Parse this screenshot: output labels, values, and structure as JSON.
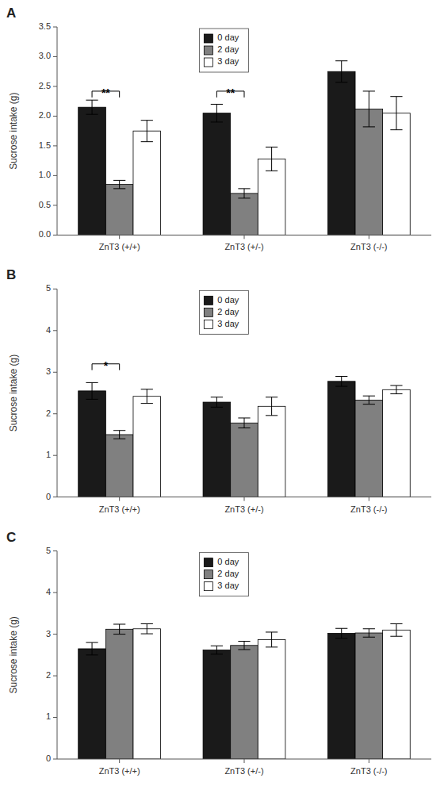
{
  "chart_data": [
    {
      "type": "bar",
      "title": "A",
      "ylabel": "Sucrose intake (g)",
      "categories": [
        "ZnT3 (+/+)",
        "ZnT3 (+/-)",
        "ZnT3 (-/-)"
      ],
      "series": [
        {
          "name": "0 day",
          "color": "#1a1a1a",
          "values": [
            2.15,
            2.05,
            2.75
          ],
          "errors": [
            0.12,
            0.15,
            0.18
          ]
        },
        {
          "name": "2 day",
          "color": "#808080",
          "values": [
            0.85,
            0.7,
            2.12
          ],
          "errors": [
            0.07,
            0.08,
            0.3
          ]
        },
        {
          "name": "3 day",
          "color": "#ffffff",
          "values": [
            1.75,
            1.28,
            2.05
          ],
          "errors": [
            0.18,
            0.2,
            0.28
          ]
        }
      ],
      "ylim": [
        0,
        3.5
      ],
      "yticks": [
        {
          "value": 0,
          "label": "0.0"
        },
        0.5,
        {
          "value": 1,
          "label": "1.0"
        },
        1.5,
        {
          "value": 2,
          "label": "2.0"
        },
        2.5,
        {
          "value": 3,
          "label": "3.0"
        },
        3.5
      ],
      "annotations": [
        {
          "text": "**",
          "category": 0,
          "series": [
            0,
            1
          ],
          "y": 2.42
        },
        {
          "text": "**",
          "category": 1,
          "series": [
            0,
            1
          ],
          "y": 2.42
        }
      ],
      "legend": "upper center",
      "grid": false
    },
    {
      "type": "bar",
      "title": "B",
      "ylabel": "Sucrose intake (g)",
      "categories": [
        "ZnT3 (+/+)",
        "ZnT3 (+/-)",
        "ZnT3 (-/-)"
      ],
      "series": [
        {
          "name": "0 day",
          "color": "#1a1a1a",
          "values": [
            2.55,
            2.28,
            2.78
          ],
          "errors": [
            0.2,
            0.12,
            0.12
          ]
        },
        {
          "name": "2 day",
          "color": "#808080",
          "values": [
            1.5,
            1.78,
            2.33
          ],
          "errors": [
            0.1,
            0.12,
            0.1
          ]
        },
        {
          "name": "3 day",
          "color": "#ffffff",
          "values": [
            2.42,
            2.18,
            2.58
          ],
          "errors": [
            0.17,
            0.22,
            0.1
          ]
        }
      ],
      "ylim": [
        0,
        5
      ],
      "yticks": [
        0,
        1,
        2,
        3,
        4,
        5
      ],
      "annotations": [
        {
          "text": "*",
          "category": 0,
          "series": [
            0,
            1
          ],
          "y": 3.2
        }
      ],
      "legend": "upper center",
      "grid": false
    },
    {
      "type": "bar",
      "title": "C",
      "ylabel": "Sucrose intake (g)",
      "categories": [
        "ZnT3 (+/+)",
        "ZnT3 (+/-)",
        "ZnT3 (-/-)"
      ],
      "series": [
        {
          "name": "0 day",
          "color": "#1a1a1a",
          "values": [
            2.65,
            2.62,
            3.02
          ],
          "errors": [
            0.15,
            0.1,
            0.12
          ]
        },
        {
          "name": "2 day",
          "color": "#808080",
          "values": [
            3.12,
            2.73,
            3.03
          ],
          "errors": [
            0.12,
            0.1,
            0.1
          ]
        },
        {
          "name": "3 day",
          "color": "#ffffff",
          "values": [
            3.13,
            2.87,
            3.1
          ],
          "errors": [
            0.12,
            0.18,
            0.15
          ]
        }
      ],
      "ylim": [
        0,
        5
      ],
      "yticks": [
        0,
        1,
        2,
        3,
        4,
        5
      ],
      "annotations": [],
      "legend": "upper center",
      "grid": false
    }
  ]
}
